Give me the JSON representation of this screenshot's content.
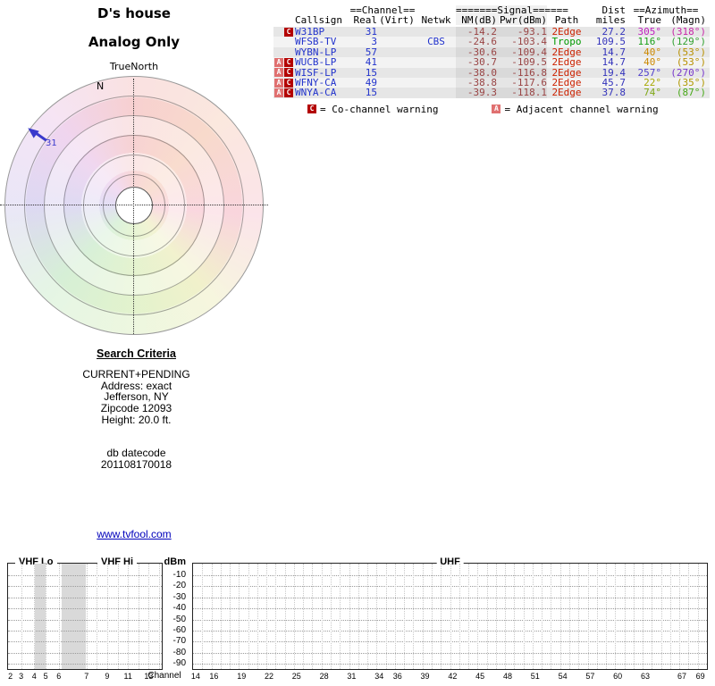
{
  "radar": {
    "title": "D's house",
    "subtitle": "Analog Only",
    "north_label": "TrueNorth",
    "compass_n": "N",
    "pointer_label": "31",
    "pointer_color": "#3a3acc"
  },
  "table": {
    "header": {
      "channel_group": "==Channel==",
      "signal_group": "=======Signal======",
      "dist_group": "Dist",
      "azimuth_group": "==Azimuth==",
      "callsign": "Callsign",
      "real": "Real",
      "virt": "(Virt)",
      "netwk": "Netwk",
      "nm": "NM(dB)",
      "pwr": "Pwr(dBm)",
      "path": "Path",
      "miles": "miles",
      "true": "True",
      "magn": "(Magn)"
    },
    "rows": [
      {
        "warnings": [
          "C"
        ],
        "callsign": "W31BP",
        "real": "31",
        "virt": "",
        "netwk": "",
        "nm": "-14.2",
        "pwr": "-93.1",
        "path": "2Edge",
        "path_color": "#cc2200",
        "miles": "27.2",
        "true": "305°",
        "true_color": "#c020c0",
        "magn": "(318°)",
        "magn_color": "#c828a8"
      },
      {
        "warnings": [],
        "callsign": "WFSB-TV",
        "real": "3",
        "virt": "",
        "netwk": "CBS",
        "nm": "-24.6",
        "pwr": "-103.4",
        "path": "Tropo",
        "path_color": "#009900",
        "miles": "109.5",
        "true": "116°",
        "true_color": "#18a018",
        "magn": "(129°)",
        "magn_color": "#30a030"
      },
      {
        "warnings": [],
        "callsign": "WYBN-LP",
        "real": "57",
        "virt": "",
        "netwk": "",
        "nm": "-30.6",
        "pwr": "-109.4",
        "path": "2Edge",
        "path_color": "#cc2200",
        "miles": "14.7",
        "true": "40°",
        "true_color": "#cc8800",
        "magn": "(53°)",
        "magn_color": "#b89000"
      },
      {
        "warnings": [
          "A",
          "C"
        ],
        "callsign": "WUCB-LP",
        "real": "41",
        "virt": "",
        "netwk": "",
        "nm": "-30.7",
        "pwr": "-109.5",
        "path": "2Edge",
        "path_color": "#cc2200",
        "miles": "14.7",
        "true": "40°",
        "true_color": "#cc8800",
        "magn": "(53°)",
        "magn_color": "#b89000"
      },
      {
        "warnings": [
          "A",
          "C"
        ],
        "callsign": "WISF-LP",
        "real": "15",
        "virt": "",
        "netwk": "",
        "nm": "-38.0",
        "pwr": "-116.8",
        "path": "2Edge",
        "path_color": "#cc2200",
        "miles": "19.4",
        "true": "257°",
        "true_color": "#5040cc",
        "magn": "(270°)",
        "magn_color": "#7838cc"
      },
      {
        "warnings": [
          "A",
          "C"
        ],
        "callsign": "WFNY-CA",
        "real": "49",
        "virt": "",
        "netwk": "",
        "nm": "-38.8",
        "pwr": "-117.6",
        "path": "2Edge",
        "path_color": "#cc2200",
        "miles": "45.7",
        "true": "22°",
        "true_color": "#a8a800",
        "magn": "(35°)",
        "magn_color": "#b09800"
      },
      {
        "warnings": [
          "A",
          "C"
        ],
        "callsign": "WNYA-CA",
        "real": "15",
        "virt": "",
        "netwk": "",
        "nm": "-39.3",
        "pwr": "-118.1",
        "path": "2Edge",
        "path_color": "#cc2200",
        "miles": "37.8",
        "true": "74°",
        "true_color": "#80a818",
        "magn": "(87°)",
        "magn_color": "#48a818"
      }
    ],
    "legend": [
      {
        "badge": "C",
        "text": "= Co-channel warning"
      },
      {
        "badge": "A",
        "text": "= Adjacent channel warning"
      }
    ]
  },
  "search": {
    "title": "Search Criteria",
    "lines": [
      "CURRENT+PENDING",
      "Address: exact",
      "Jefferson, NY",
      "Zipcode 12093",
      "Height: 20.0 ft."
    ],
    "db_label": "db datecode",
    "db_value": "201108170018"
  },
  "link": "www.tvfool.com",
  "chart_data": {
    "type": "bar",
    "title": "",
    "ylabel": "dBm",
    "xlabel": "Channel",
    "ylim": [
      -90,
      -10
    ],
    "y_ticks": [
      "-10",
      "-20",
      "-30",
      "-40",
      "-50",
      "-60",
      "-70",
      "-80",
      "-90"
    ],
    "grid": true,
    "legend_position": "none",
    "sections": [
      {
        "label": "VHF Lo"
      },
      {
        "label": "VHF Hi"
      },
      {
        "label": "UHF"
      }
    ],
    "vhf_channels": [
      "2",
      "3",
      "4",
      "5",
      "6",
      "7",
      "9",
      "11",
      "13"
    ],
    "uhf_channels": [
      "14",
      "16",
      "19",
      "22",
      "25",
      "28",
      "31",
      "34",
      "36",
      "39",
      "42",
      "45",
      "48",
      "51",
      "54",
      "57",
      "60",
      "63",
      "67",
      "69"
    ],
    "bars_visible": false,
    "series": [
      {
        "name": "W31BP",
        "channel": 31,
        "power_dbm": -93.1
      },
      {
        "name": "WFSB-TV",
        "channel": 3,
        "power_dbm": -103.4
      },
      {
        "name": "WYBN-LP",
        "channel": 57,
        "power_dbm": -109.4
      },
      {
        "name": "WUCB-LP",
        "channel": 41,
        "power_dbm": -109.5
      },
      {
        "name": "WISF-LP",
        "channel": 15,
        "power_dbm": -116.8
      },
      {
        "name": "WFNY-CA",
        "channel": 49,
        "power_dbm": -117.6
      },
      {
        "name": "WNYA-CA",
        "channel": 15,
        "power_dbm": -118.1
      }
    ]
  }
}
